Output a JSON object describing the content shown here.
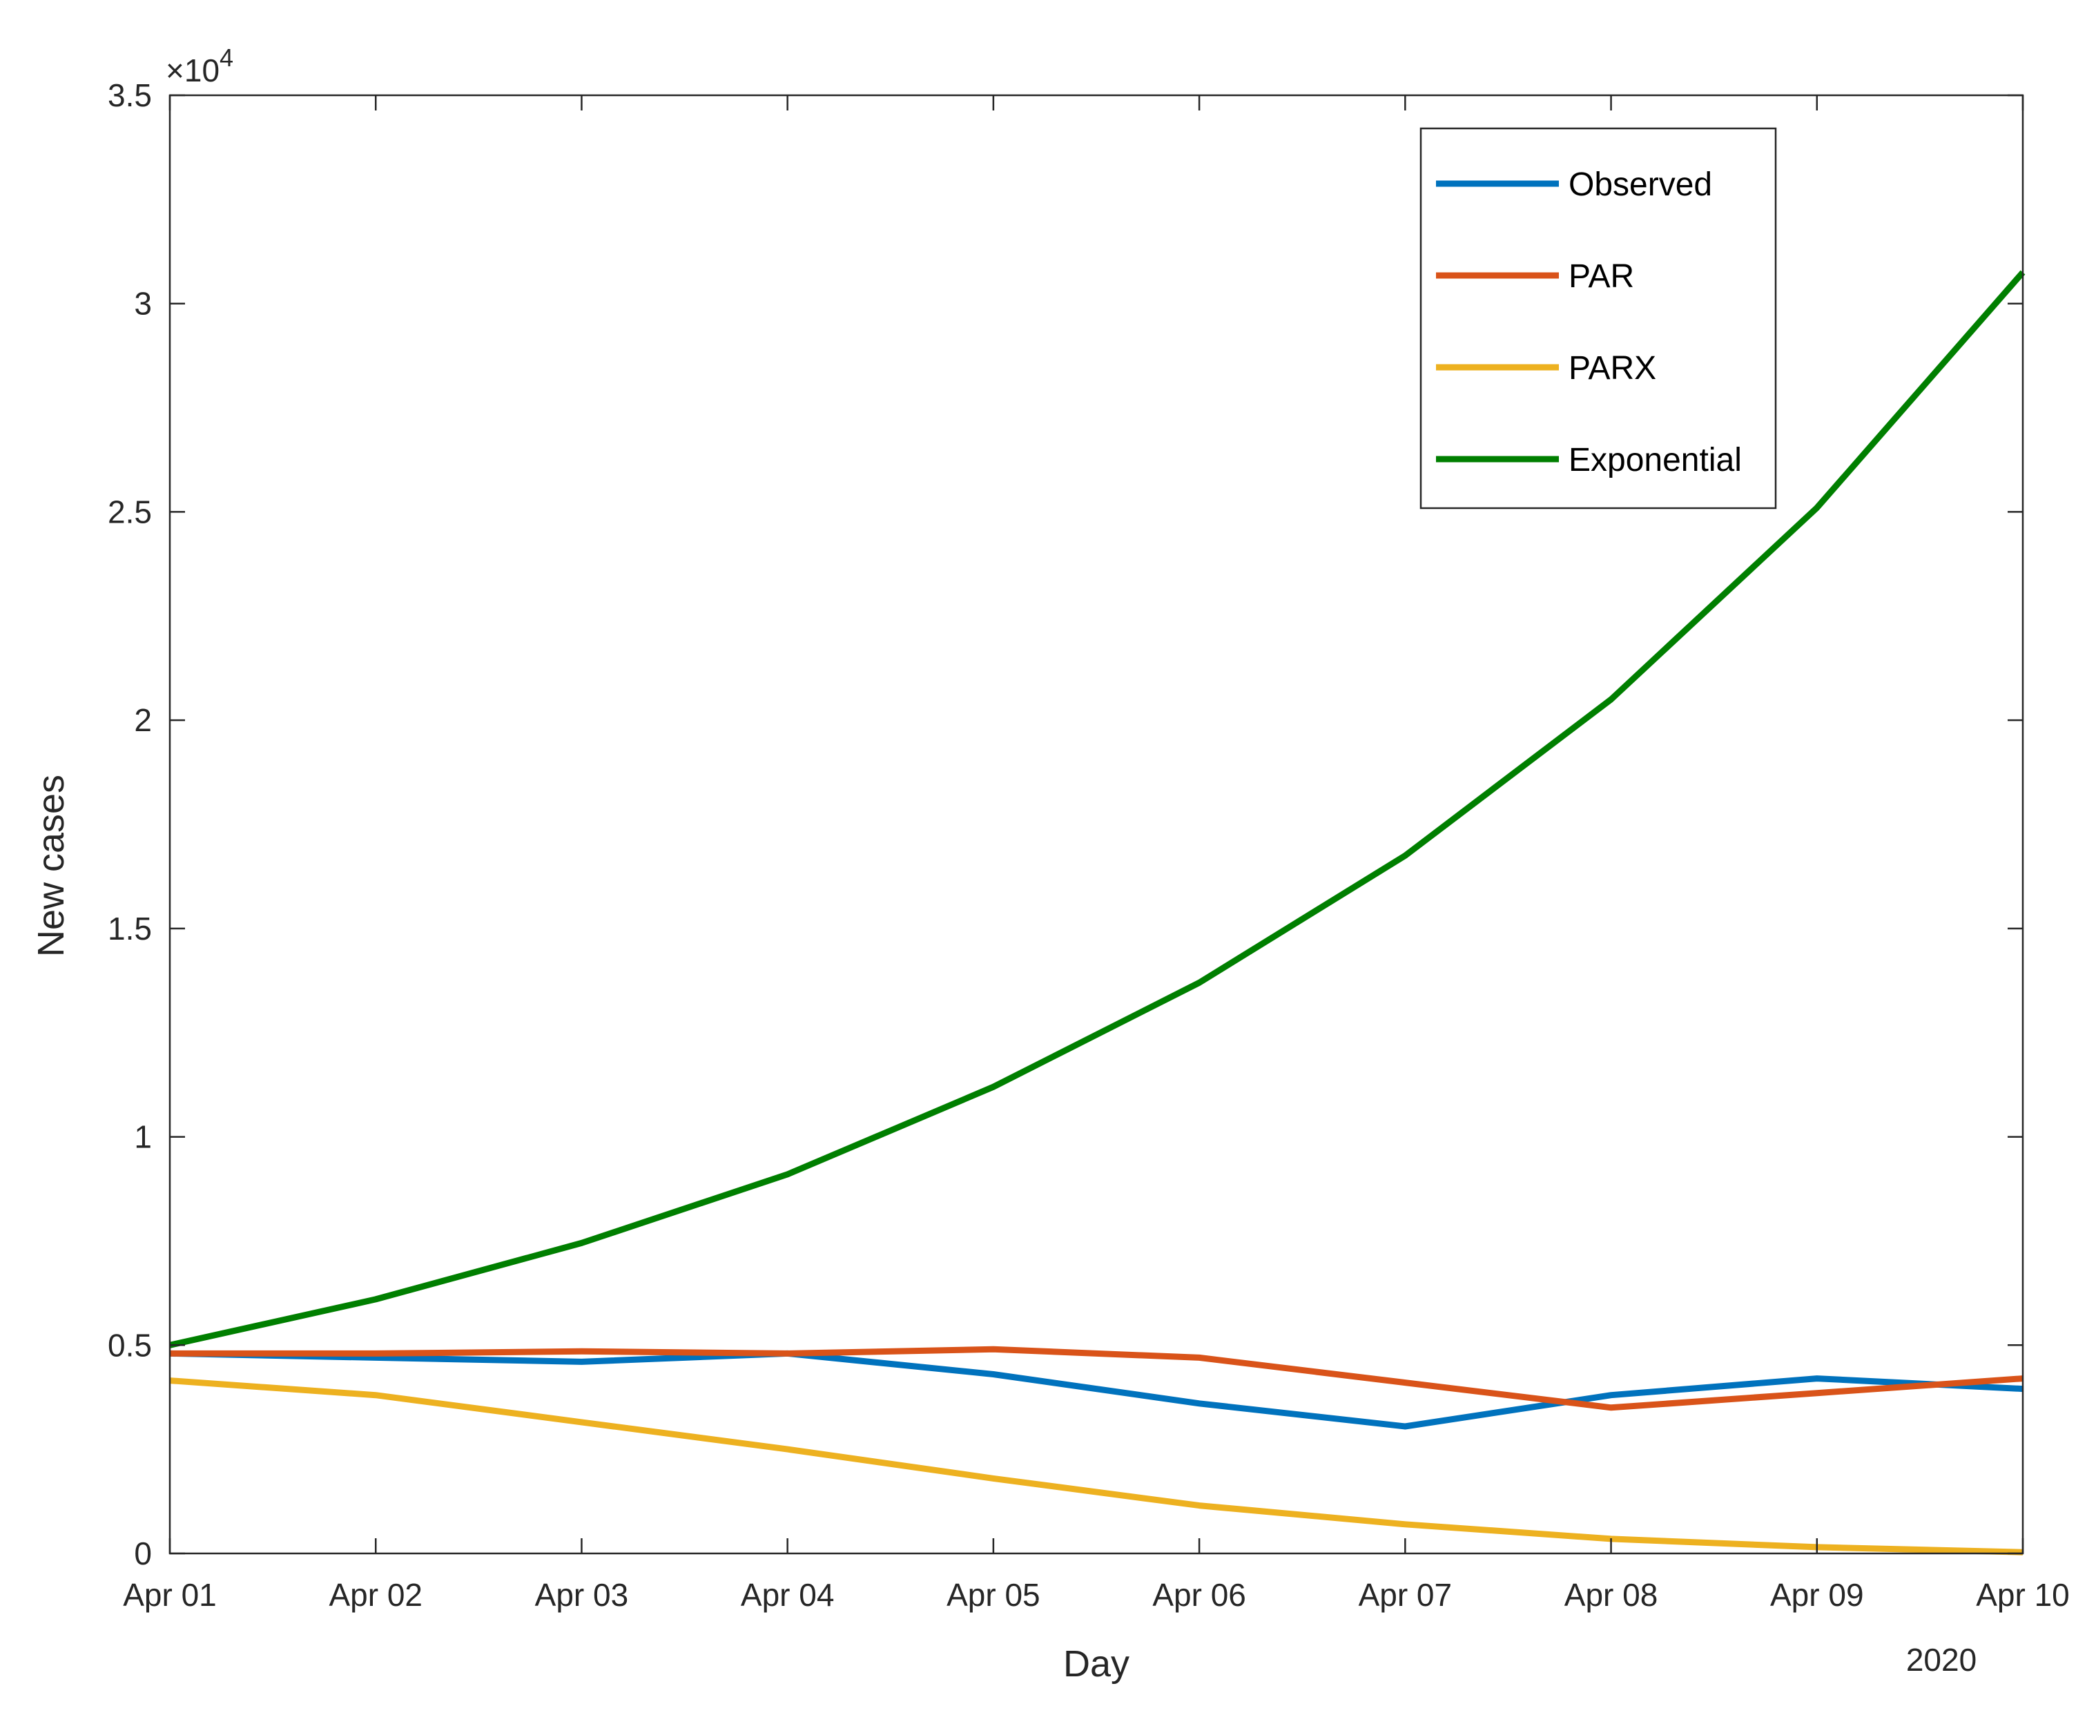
{
  "chart_data": {
    "type": "line",
    "title": "",
    "xlabel": "Day",
    "ylabel": "New cases",
    "x_year_label": "2020",
    "y_exponent_label": {
      "base": "×10",
      "exponent": "4"
    },
    "x": [
      "Apr 01",
      "Apr 02",
      "Apr 03",
      "Apr 04",
      "Apr 05",
      "Apr 06",
      "Apr 07",
      "Apr 08",
      "Apr 09",
      "Apr 10"
    ],
    "ylim": [
      0,
      35000
    ],
    "yticks": [
      0,
      5000,
      10000,
      15000,
      20000,
      25000,
      30000,
      35000
    ],
    "ytick_labels": [
      "0",
      "0.5",
      "1",
      "1.5",
      "2",
      "2.5",
      "3",
      "3.5"
    ],
    "grid": false,
    "legend_position": "top-right",
    "series": [
      {
        "name": "Observed",
        "color": "#0072bd",
        "values": [
          4800,
          4700,
          4600,
          4800,
          4300,
          3600,
          3050,
          3800,
          4200,
          3950
        ]
      },
      {
        "name": "PAR",
        "color": "#d95319",
        "values": [
          4800,
          4800,
          4850,
          4800,
          4900,
          4700,
          4100,
          3500,
          3850,
          4200
        ]
      },
      {
        "name": "PARX",
        "color": "#edb120",
        "values": [
          4150,
          3800,
          3150,
          2500,
          1800,
          1150,
          700,
          350,
          150,
          30
        ]
      },
      {
        "name": "Exponential",
        "color": "#007f00",
        "values": [
          5000,
          6100,
          7450,
          9100,
          11200,
          13700,
          16750,
          20500,
          25100,
          30750
        ]
      }
    ]
  }
}
